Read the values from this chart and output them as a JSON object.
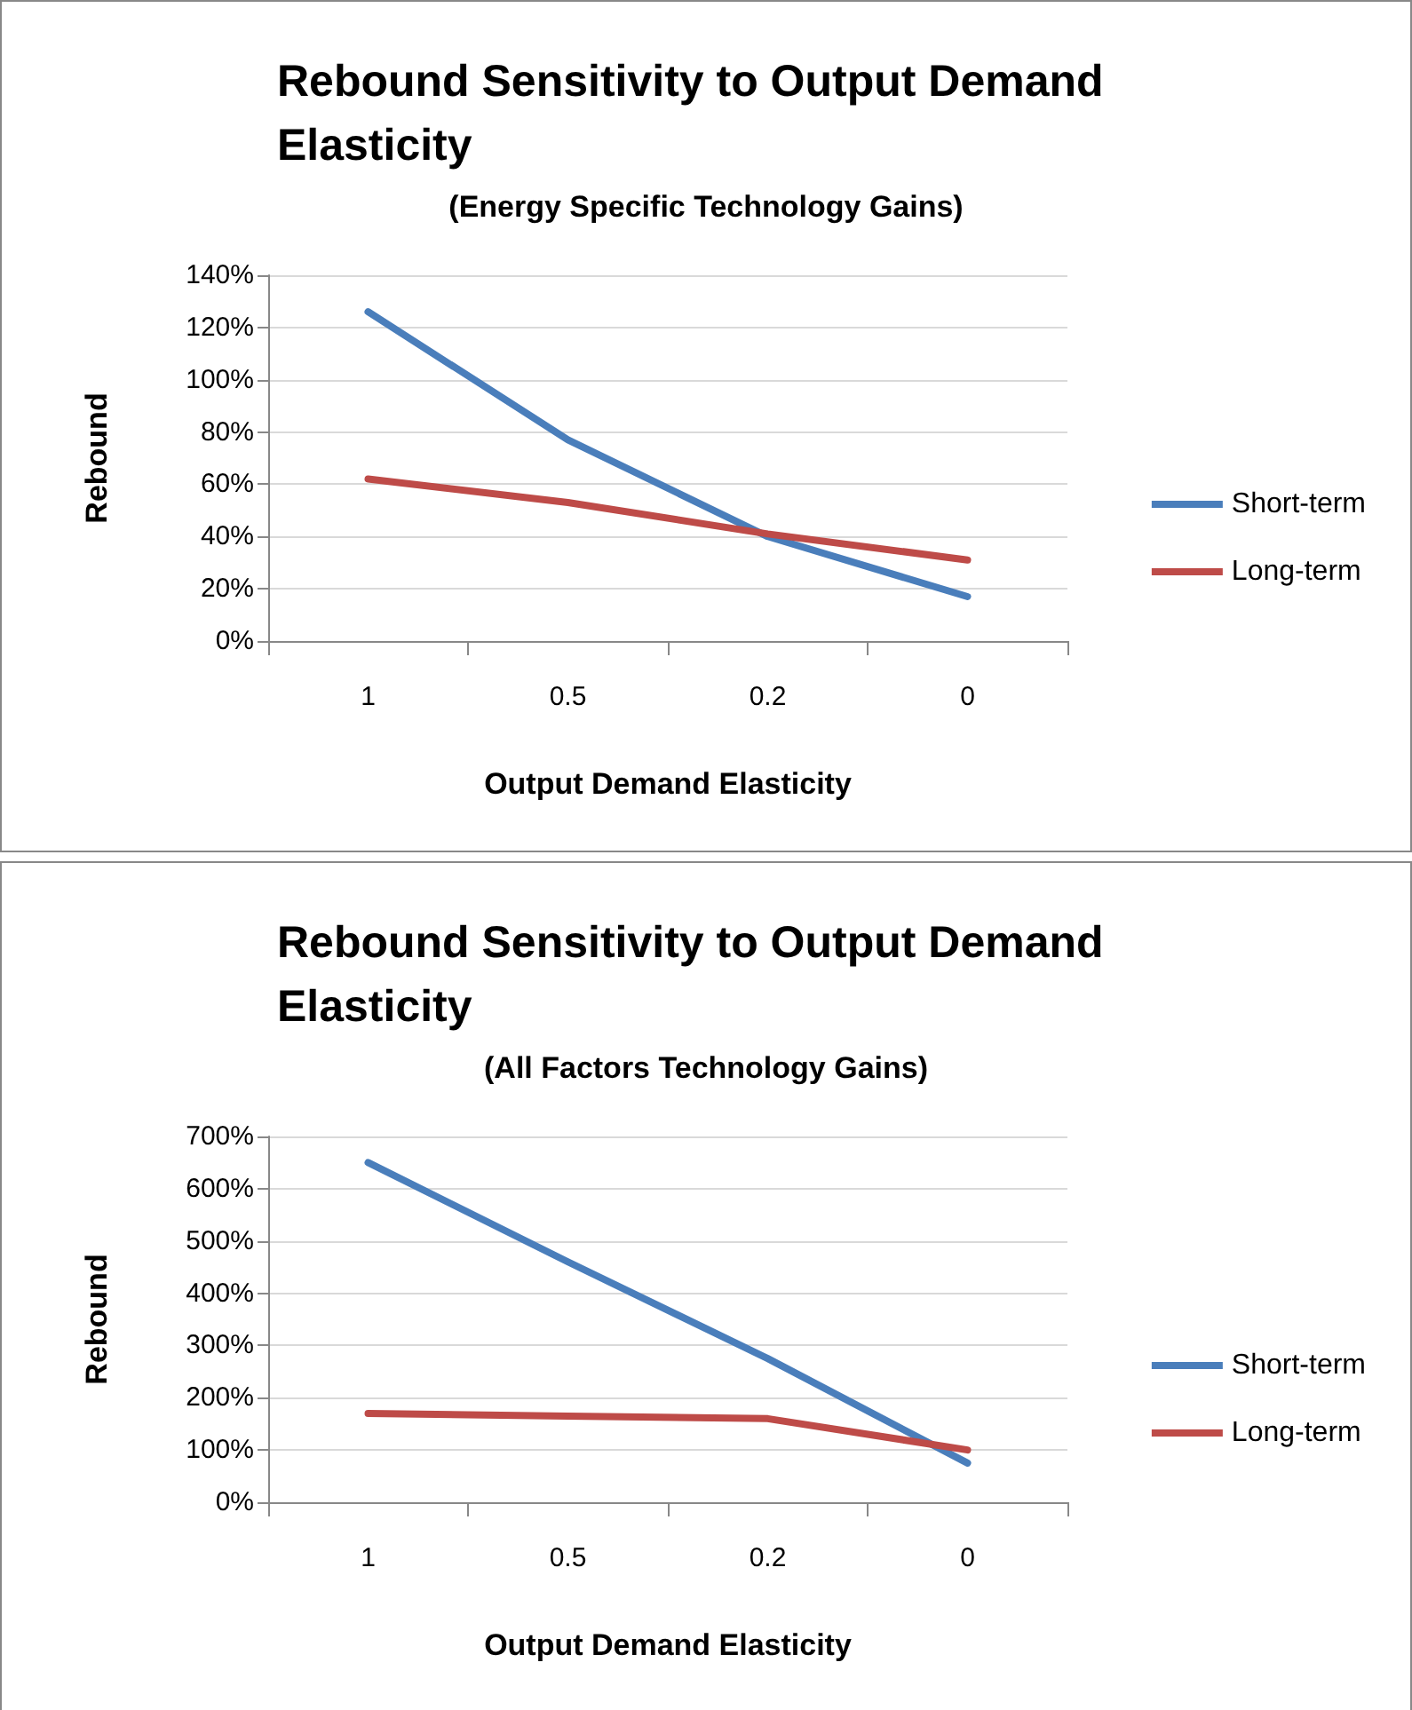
{
  "chart_data": [
    {
      "type": "line",
      "title": "Rebound Sensitivity to Output Demand Elasticity",
      "subtitle": "(Energy Specific Technology Gains)",
      "xlabel": "Output Demand Elasticity",
      "ylabel": "Rebound",
      "categories": [
        "1",
        "0.5",
        "0.2",
        "0"
      ],
      "series": [
        {
          "name": "Short-term",
          "color": "#4a7ebb",
          "values": [
            126,
            77,
            40,
            17
          ]
        },
        {
          "name": "Long-term",
          "color": "#be4b48",
          "values": [
            62,
            53,
            41,
            31
          ]
        }
      ],
      "ylim": [
        0,
        140
      ],
      "yticks": [
        {
          "value": 0,
          "label": "0%"
        },
        {
          "value": 20,
          "label": "20%"
        },
        {
          "value": 40,
          "label": "40%"
        },
        {
          "value": 60,
          "label": "60%"
        },
        {
          "value": 80,
          "label": "80%"
        },
        {
          "value": 100,
          "label": "100%"
        },
        {
          "value": 120,
          "label": "120%"
        },
        {
          "value": 140,
          "label": "140%"
        }
      ],
      "grid": "y",
      "legend": "right",
      "marker": "none",
      "line_style": "solid"
    },
    {
      "type": "line",
      "title": "Rebound Sensitivity to Output Demand Elasticity",
      "subtitle": "(All Factors Technology Gains)",
      "xlabel": "Output Demand Elasticity",
      "ylabel": "Rebound",
      "categories": [
        "1",
        "0.5",
        "0.2",
        "0"
      ],
      "series": [
        {
          "name": "Short-term",
          "color": "#4a7ebb",
          "values": [
            650,
            460,
            275,
            75
          ]
        },
        {
          "name": "Long-term",
          "color": "#be4b48",
          "values": [
            170,
            165,
            160,
            100
          ]
        }
      ],
      "ylim": [
        0,
        700
      ],
      "yticks": [
        {
          "value": 0,
          "label": "0%"
        },
        {
          "value": 100,
          "label": "100%"
        },
        {
          "value": 200,
          "label": "200%"
        },
        {
          "value": 300,
          "label": "300%"
        },
        {
          "value": 400,
          "label": "400%"
        },
        {
          "value": 500,
          "label": "500%"
        },
        {
          "value": 600,
          "label": "600%"
        },
        {
          "value": 700,
          "label": "700%"
        }
      ],
      "grid": "y",
      "legend": "right",
      "marker": "none",
      "line_style": "solid"
    }
  ]
}
